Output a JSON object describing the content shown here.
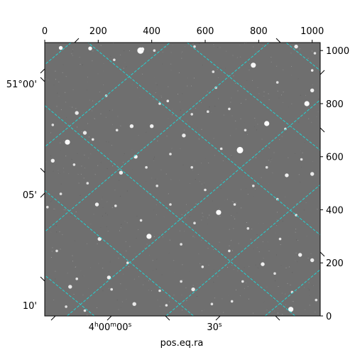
{
  "chart_data": {
    "type": "image",
    "pixel_axes": {
      "x_range": [
        0,
        1030
      ],
      "y_range": [
        0,
        1030
      ],
      "top_ticks": [
        "0",
        "200",
        "400",
        "600",
        "800",
        "1000"
      ],
      "right_ticks": [
        "0",
        "200",
        "400",
        "600",
        "800",
        "1000"
      ]
    },
    "world_axes": {
      "xlabel": "pos.eq.ra",
      "bottom_ticks": [
        {
          "label_main": "4",
          "label_parts": [
            {
              "t": "4",
              "sup": false
            },
            {
              "t": "h",
              "sup": true
            },
            {
              "t": "00",
              "sup": false
            },
            {
              "t": "m",
              "sup": true
            },
            {
              "t": "00",
              "sup": false
            },
            {
              "t": "s",
              "sup": true
            }
          ]
        },
        {
          "label_main": "30",
          "label_parts": [
            {
              "t": "30",
              "sup": false
            },
            {
              "t": "s",
              "sup": true
            }
          ]
        }
      ],
      "left_ticks": [
        "51°00'",
        "05'",
        "10'"
      ]
    },
    "grid": true,
    "grid_color": "#22d3d3",
    "image_background": "#6f6f6f",
    "stars": [
      [
        60,
        1010,
        3,
        1.0
      ],
      [
        170,
        1008,
        3,
        0.95
      ],
      [
        358,
        1000,
        5,
        1.0
      ],
      [
        365,
        1005,
        3,
        0.9
      ],
      [
        780,
        945,
        4,
        0.9
      ],
      [
        1000,
        925,
        2,
        0.8
      ],
      [
        630,
        920,
        2,
        0.7
      ],
      [
        260,
        965,
        2,
        0.75
      ],
      [
        410,
        1000,
        2,
        0.7
      ],
      [
        560,
        1015,
        2,
        0.7
      ],
      [
        940,
        1015,
        3,
        0.8
      ],
      [
        1000,
        850,
        3,
        0.85
      ],
      [
        980,
        800,
        4,
        0.95
      ],
      [
        460,
        810,
        2,
        0.8
      ],
      [
        120,
        765,
        3,
        0.8
      ],
      [
        325,
        715,
        3,
        0.85
      ],
      [
        180,
        665,
        2,
        0.8
      ],
      [
        270,
        700,
        2,
        0.75
      ],
      [
        400,
        715,
        3,
        0.85
      ],
      [
        430,
        800,
        2,
        0.75
      ],
      [
        520,
        680,
        3,
        0.8
      ],
      [
        610,
        770,
        2,
        0.7
      ],
      [
        690,
        780,
        2,
        0.75
      ],
      [
        830,
        725,
        4,
        0.95
      ],
      [
        900,
        705,
        2,
        0.75
      ],
      [
        750,
        700,
        2,
        0.7
      ],
      [
        85,
        655,
        4,
        0.95
      ],
      [
        150,
        690,
        3,
        0.8
      ],
      [
        340,
        600,
        3,
        0.9
      ],
      [
        470,
        610,
        2,
        0.75
      ],
      [
        730,
        625,
        5,
        1.0
      ],
      [
        660,
        630,
        2,
        0.75
      ],
      [
        30,
        585,
        3,
        0.85
      ],
      [
        110,
        570,
        2,
        0.75
      ],
      [
        285,
        540,
        3,
        0.85
      ],
      [
        380,
        560,
        2,
        0.75
      ],
      [
        550,
        560,
        2,
        0.7
      ],
      [
        830,
        560,
        2,
        0.7
      ],
      [
        905,
        530,
        3,
        0.85
      ],
      [
        1000,
        535,
        3,
        0.8
      ],
      [
        960,
        590,
        2,
        0.7
      ],
      [
        420,
        490,
        2,
        0.7
      ],
      [
        600,
        475,
        2,
        0.75
      ],
      [
        780,
        490,
        2,
        0.7
      ],
      [
        195,
        420,
        3,
        0.85
      ],
      [
        265,
        415,
        2,
        0.75
      ],
      [
        470,
        420,
        2,
        0.7
      ],
      [
        650,
        390,
        4,
        0.95
      ],
      [
        710,
        420,
        2,
        0.75
      ],
      [
        940,
        380,
        2,
        0.75
      ],
      [
        10,
        410,
        2,
        0.7
      ],
      [
        390,
        300,
        4,
        0.95
      ],
      [
        205,
        290,
        3,
        0.85
      ],
      [
        510,
        270,
        2,
        0.7
      ],
      [
        690,
        245,
        2,
        0.75
      ],
      [
        880,
        290,
        2,
        0.75
      ],
      [
        955,
        230,
        3,
        0.85
      ],
      [
        1000,
        210,
        3,
        0.8
      ],
      [
        45,
        245,
        2,
        0.7
      ],
      [
        310,
        200,
        2,
        0.75
      ],
      [
        815,
        195,
        3,
        0.85
      ],
      [
        590,
        185,
        2,
        0.75
      ],
      [
        120,
        140,
        2,
        0.75
      ],
      [
        240,
        145,
        3,
        0.85
      ],
      [
        510,
        130,
        2,
        0.7
      ],
      [
        740,
        130,
        2,
        0.75
      ],
      [
        860,
        160,
        2,
        0.7
      ],
      [
        95,
        110,
        3,
        0.8
      ],
      [
        250,
        100,
        2,
        0.75
      ],
      [
        555,
        100,
        3,
        0.8
      ],
      [
        925,
        90,
        2,
        0.7
      ],
      [
        335,
        45,
        3,
        0.8
      ],
      [
        455,
        40,
        2,
        0.75
      ],
      [
        625,
        45,
        2,
        0.7
      ],
      [
        700,
        55,
        2,
        0.75
      ],
      [
        920,
        25,
        4,
        0.95
      ],
      [
        150,
        20,
        2,
        0.75
      ],
      [
        80,
        35,
        2,
        0.7
      ],
      [
        1015,
        60,
        2,
        0.7
      ],
      [
        430,
        95,
        2,
        0.7
      ],
      [
        160,
        500,
        2,
        0.7
      ],
      [
        60,
        460,
        2,
        0.7
      ],
      [
        870,
        440,
        2,
        0.7
      ],
      [
        560,
        350,
        2,
        0.7
      ],
      [
        760,
        330,
        2,
        0.7
      ],
      [
        360,
        360,
        2,
        0.7
      ],
      [
        230,
        830,
        2,
        0.7
      ],
      [
        870,
        880,
        2,
        0.7
      ],
      [
        1010,
        990,
        2,
        0.7
      ],
      [
        640,
        860,
        2,
        0.7
      ],
      [
        550,
        760,
        2,
        0.7
      ],
      [
        30,
        720,
        2,
        0.7
      ]
    ],
    "grid_lines": [
      [
        [
          -20,
          930
        ],
        [
          110,
          1040
        ]
      ],
      [
        [
          -20,
          620
        ],
        [
          480,
          1040
        ]
      ],
      [
        [
          -20,
          300
        ],
        [
          850,
          1040
        ]
      ],
      [
        [
          60,
          -20
        ],
        [
          1060,
          840
        ]
      ],
      [
        [
          430,
          -20
        ],
        [
          1060,
          520
        ]
      ],
      [
        [
          800,
          -20
        ],
        [
          1060,
          200
        ]
      ],
      [
        [
          1060,
          900
        ],
        [
          890,
          1040
        ]
      ],
      [
        [
          1060,
          600
        ],
        [
          520,
          1040
        ]
      ],
      [
        [
          1060,
          280
        ],
        [
          150,
          1040
        ]
      ],
      [
        [
          960,
          -20
        ],
        [
          -20,
          810
        ]
      ],
      [
        [
          580,
          -20
        ],
        [
          -20,
          490
        ]
      ],
      [
        [
          210,
          -20
        ],
        [
          -20,
          170
        ]
      ]
    ]
  }
}
